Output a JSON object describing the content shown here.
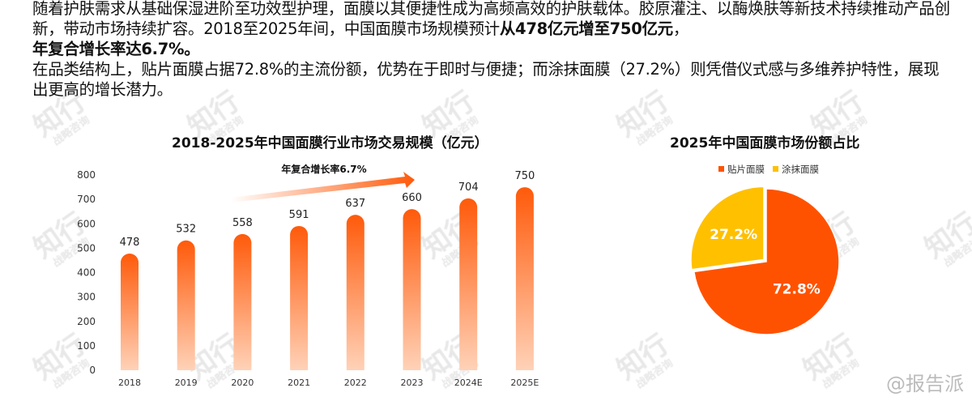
{
  "paragraph1": {
    "text1": "随着护肤需求从基础保湿进阶至功效型护理，面膜以其便捷性成为高频高效的护肤载体。胶原灌注、以酶焕肤等新技术持续推动产品创新，带动市场持续扩容。2018至2025年间，中国面膜市场规模预计",
    "bold1": "从478亿元增至750亿元",
    "text2": "，",
    "bold2": "年复合增长率达6.7%。"
  },
  "paragraph2": "在品类结构上，贴片面膜占据72.8%的主流份额，优势在于即时与便捷；而涂抹面膜（27.2%）则凭借仪式感与多维养护特性，展现出更高的增长潜力。",
  "watermark": {
    "main": "知行",
    "sub": "战略咨询"
  },
  "credit": "@报告派",
  "colors": {
    "bar_top": "#FF5A0A",
    "bar_bottom": "#FFD2B8",
    "sheet": "#FF5200",
    "smear": "#FFC000"
  },
  "chart_data": [
    {
      "type": "bar",
      "title": "2018-2025年中国面膜行业市场交易规模（亿元）",
      "categories": [
        "2018",
        "2019",
        "2020",
        "2021",
        "2022",
        "2023",
        "2024E",
        "2025E"
      ],
      "values": [
        478,
        532,
        558,
        591,
        637,
        660,
        704,
        750
      ],
      "yticks": [
        0,
        100,
        200,
        300,
        400,
        500,
        600,
        700,
        800
      ],
      "ylim": [
        0,
        800
      ],
      "grid": false,
      "annotation": "年复合增长率6.7%"
    },
    {
      "type": "pie",
      "title": "2025年中国面膜市场份额占比",
      "legend_position": "top",
      "slices": [
        {
          "label": "贴片面膜",
          "value": 72.8,
          "display": "72.8%"
        },
        {
          "label": "涂抹面膜",
          "value": 27.2,
          "display": "27.2%"
        }
      ]
    }
  ]
}
